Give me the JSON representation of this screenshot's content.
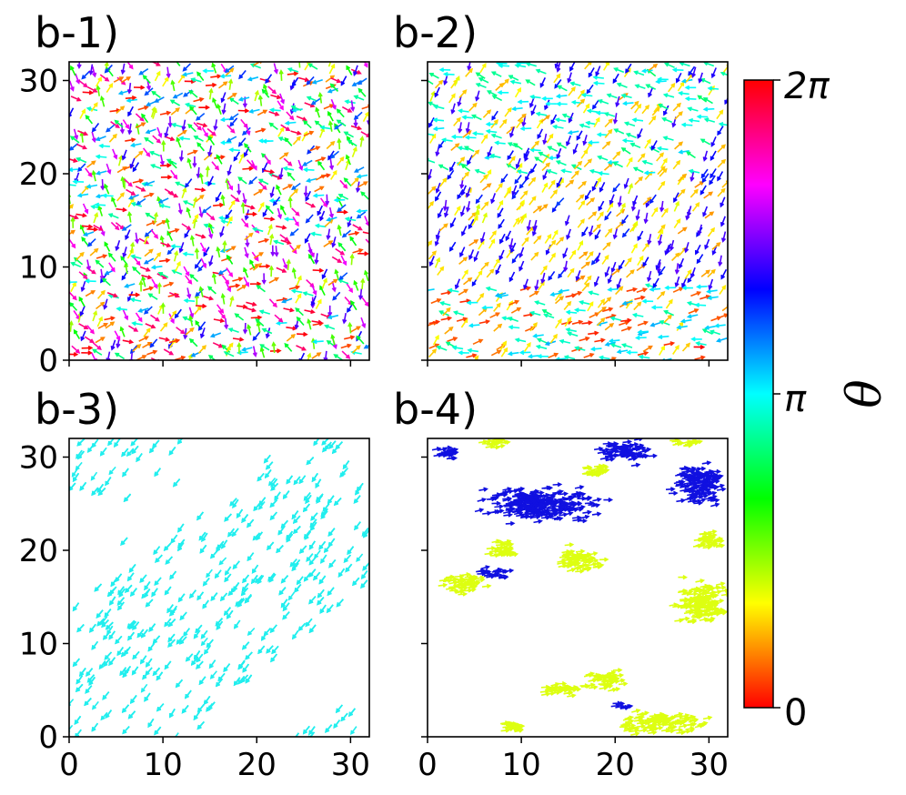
{
  "chart_data": [
    {
      "type": "scatter",
      "title": "b-1)",
      "marker": "arrow",
      "xlim": [
        0,
        32
      ],
      "ylim": [
        0,
        32
      ],
      "xticks": [
        0,
        10,
        20,
        30
      ],
      "yticks": [
        0,
        10,
        20,
        30
      ],
      "show_xticklabels": false,
      "show_yticklabels": true,
      "pattern": "random",
      "density": 0.82,
      "angle_range": [
        0,
        6.2832
      ]
    },
    {
      "type": "scatter",
      "title": "b-2)",
      "marker": "arrow",
      "xlim": [
        0,
        32
      ],
      "ylim": [
        0,
        32
      ],
      "xticks": [
        0,
        10,
        20,
        30
      ],
      "yticks": [
        0,
        10,
        20,
        30
      ],
      "show_xticklabels": false,
      "show_yticklabels": false,
      "pattern": "banded",
      "density": 0.72,
      "bands": [
        {
          "y": [
            0,
            8
          ],
          "angles": [
            0.3,
            0.9,
            2.9,
            3.3
          ]
        },
        {
          "y": [
            8,
            20
          ],
          "angles": [
            4.2,
            4.4,
            1.0,
            0.8
          ]
        },
        {
          "y": [
            20,
            32
          ],
          "angles": [
            3.1,
            4.3,
            0.9,
            2.7
          ]
        }
      ]
    },
    {
      "type": "scatter",
      "title": "b-3)",
      "marker": "arrow",
      "xlim": [
        0,
        32
      ],
      "ylim": [
        0,
        32
      ],
      "xticks": [
        0,
        10,
        20,
        30
      ],
      "yticks": [
        0,
        10,
        20,
        30
      ],
      "show_xticklabels": true,
      "show_yticklabels": true,
      "pattern": "diagonal-bands",
      "angle": 3.1416,
      "color": "#22eeee",
      "band_centers": [
        7,
        30
      ],
      "band_slope": 0.75,
      "band_halfwidth": 6.5
    },
    {
      "type": "scatter",
      "title": "b-4)",
      "marker": "arrow",
      "xlim": [
        0,
        32
      ],
      "ylim": [
        0,
        32
      ],
      "xticks": [
        0,
        10,
        20,
        30
      ],
      "yticks": [
        0,
        10,
        20,
        30
      ],
      "show_xticklabels": true,
      "show_yticklabels": false,
      "pattern": "clusters",
      "clusters": [
        {
          "color": "#1010e0",
          "center": [
            12,
            25
          ],
          "size": [
            8,
            2.5
          ]
        },
        {
          "color": "#1010e0",
          "center": [
            21,
            30.5
          ],
          "size": [
            4,
            1.5
          ]
        },
        {
          "color": "#1010e0",
          "center": [
            29,
            27
          ],
          "size": [
            3.5,
            3
          ]
        },
        {
          "color": "#1010e0",
          "center": [
            2,
            30.5
          ],
          "size": [
            2,
            0.8
          ]
        },
        {
          "color": "#1010e0",
          "center": [
            7,
            17.5
          ],
          "size": [
            2,
            1
          ]
        },
        {
          "color": "#1010e0",
          "center": [
            21,
            3.3
          ],
          "size": [
            1.5,
            0.5
          ]
        },
        {
          "color": "#ddff11",
          "center": [
            7,
            31.5
          ],
          "size": [
            2,
            0.8
          ]
        },
        {
          "color": "#ddff11",
          "center": [
            18,
            28.5
          ],
          "size": [
            2,
            1
          ]
        },
        {
          "color": "#ddff11",
          "center": [
            4,
            16.5
          ],
          "size": [
            3,
            1.3
          ]
        },
        {
          "color": "#ddff11",
          "center": [
            8,
            20
          ],
          "size": [
            2,
            1.2
          ]
        },
        {
          "color": "#ddff11",
          "center": [
            16,
            19
          ],
          "size": [
            3,
            1.8
          ]
        },
        {
          "color": "#ddff11",
          "center": [
            29,
            14.5
          ],
          "size": [
            3.5,
            3
          ]
        },
        {
          "color": "#ddff11",
          "center": [
            30,
            21
          ],
          "size": [
            2,
            1.3
          ]
        },
        {
          "color": "#ddff11",
          "center": [
            27.5,
            31.5
          ],
          "size": [
            2,
            0.6
          ]
        },
        {
          "color": "#ddff11",
          "center": [
            19,
            6
          ],
          "size": [
            3,
            1.3
          ]
        },
        {
          "color": "#ddff11",
          "center": [
            14,
            5
          ],
          "size": [
            2.5,
            1
          ]
        },
        {
          "color": "#ddff11",
          "center": [
            25,
            1.5
          ],
          "size": [
            6,
            1.5
          ]
        },
        {
          "color": "#ddff11",
          "center": [
            9,
            1.2
          ],
          "size": [
            2,
            1
          ]
        }
      ]
    }
  ],
  "colorbar": {
    "label": "θ",
    "ticks": [
      "0",
      "π",
      "2π"
    ],
    "range": [
      0,
      6.2832
    ],
    "colormap": "hsv"
  }
}
